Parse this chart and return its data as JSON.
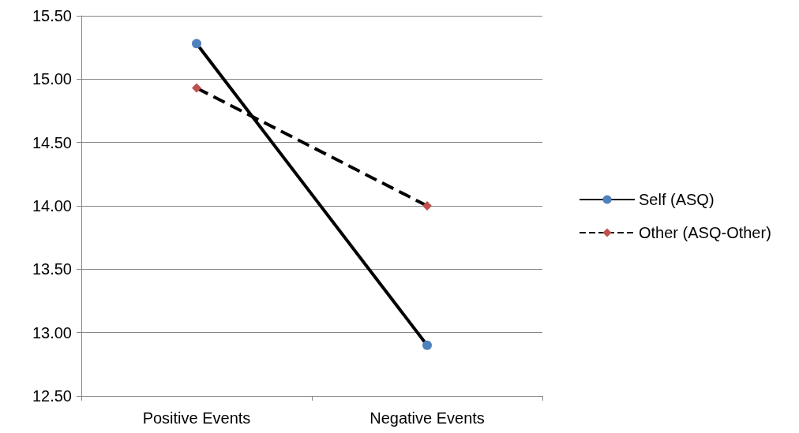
{
  "chart_data": {
    "type": "line",
    "categories": [
      "Positive Events",
      "Negative Events"
    ],
    "series": [
      {
        "name": "Self (ASQ)",
        "color": "#000000",
        "colors": [
          "#4f81bd",
          "#4f81bd"
        ],
        "marker": "circle",
        "line_style": "solid",
        "values": [
          15.28,
          12.9
        ]
      },
      {
        "name": "Other (ASQ-Other)",
        "color": "#000000",
        "colors": [
          "#c0504d",
          "#c0504d"
        ],
        "marker": "diamond",
        "line_style": "dashed",
        "values": [
          14.93,
          14.0
        ]
      }
    ],
    "ylim": [
      12.5,
      15.5
    ],
    "yticks": [
      {
        "value": 12.5,
        "label": "12.50"
      },
      {
        "value": 13,
        "label": "13.00"
      },
      {
        "value": 13.5,
        "label": "13.50"
      },
      {
        "value": 14,
        "label": "14.00"
      },
      {
        "value": 14.5,
        "label": "14.50"
      },
      {
        "value": 15,
        "label": "15.00"
      },
      {
        "value": 15.5,
        "label": "15.50"
      }
    ],
    "grid": "y",
    "legend": "right"
  }
}
